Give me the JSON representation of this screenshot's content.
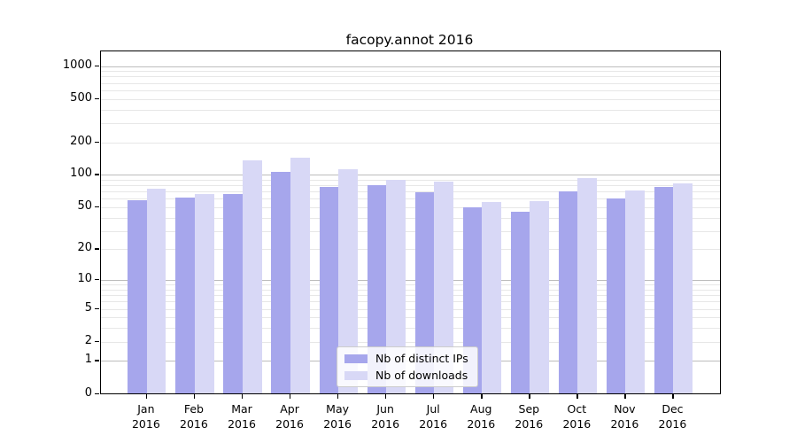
{
  "title": "facopy.annot 2016",
  "chart_data": {
    "type": "bar",
    "title": "facopy.annot 2016",
    "categories": [
      "Jan",
      "Feb",
      "Mar",
      "Apr",
      "May",
      "Jun",
      "Jul",
      "Aug",
      "Sep",
      "Oct",
      "Nov",
      "Dec"
    ],
    "category_year": "2016",
    "series": [
      {
        "name": "Nb of distinct IPs",
        "color": "#a6a6ec",
        "values": [
          58,
          61,
          67,
          106,
          78,
          80,
          69,
          50,
          45,
          70,
          60,
          78
        ]
      },
      {
        "name": "Nb of downloads",
        "color": "#d8d8f6",
        "values": [
          75,
          67,
          136,
          144,
          112,
          90,
          86,
          56,
          57,
          94,
          71,
          84
        ]
      }
    ],
    "xlabel": "",
    "ylabel": "",
    "y_axis": {
      "scale": "log10(value+1)",
      "tick_labels": [
        "1000",
        "500",
        "200",
        "100",
        "50",
        "20",
        "10",
        "5",
        "2",
        "1",
        "0"
      ],
      "tick_values": [
        1000,
        500,
        200,
        100,
        50,
        20,
        10,
        5,
        2,
        1,
        0
      ],
      "major_grid_values": [
        1,
        10,
        100,
        1000
      ],
      "minor_grid_values": [
        2,
        3,
        4,
        5,
        6,
        7,
        8,
        9,
        20,
        30,
        40,
        50,
        60,
        70,
        80,
        90,
        200,
        300,
        400,
        500,
        600,
        700,
        800,
        900
      ],
      "ylim": [
        0,
        1345
      ]
    },
    "legend": {
      "position": "inside-bottom-center",
      "entries": [
        "Nb of distinct IPs",
        "Nb of downloads"
      ]
    },
    "grid": true,
    "colors": {
      "major_grid": "#bdbdbd",
      "minor_grid": "#e7e7e7",
      "axis": "#000000",
      "background": "#ffffff"
    }
  }
}
